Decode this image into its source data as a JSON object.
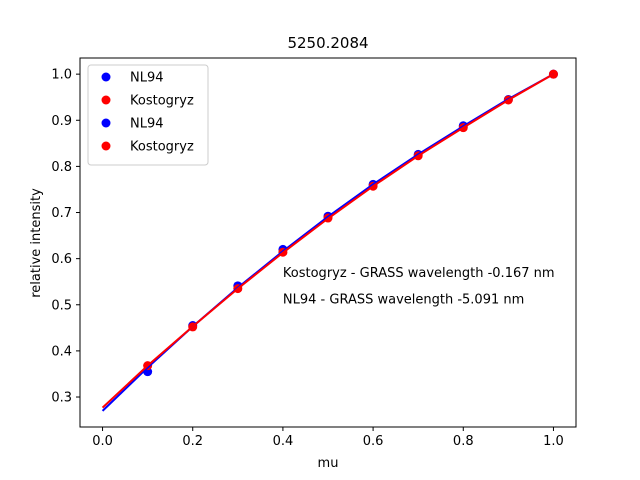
{
  "chart_data": {
    "type": "scatter",
    "title": "5250.2084",
    "xlabel": "mu",
    "ylabel": "relative intensity",
    "xlim": [
      -0.05,
      1.05
    ],
    "ylim": [
      0.235,
      1.035
    ],
    "xticks": [
      0.0,
      0.2,
      0.4,
      0.6,
      0.8,
      1.0
    ],
    "xtick_labels": [
      "0.0",
      "0.2",
      "0.4",
      "0.6",
      "0.8",
      "1.0"
    ],
    "yticks": [
      0.3,
      0.4,
      0.5,
      0.6,
      0.7,
      0.8,
      0.9,
      1.0
    ],
    "ytick_labels": [
      "0.3",
      "0.4",
      "0.5",
      "0.6",
      "0.7",
      "0.8",
      "0.9",
      "1.0"
    ],
    "grid": false,
    "legend_position": "upper-left",
    "legend": [
      {
        "label": "NL94",
        "color": "#0000ff"
      },
      {
        "label": "Kostogryz",
        "color": "#ff0000"
      },
      {
        "label": "NL94",
        "color": "#0000ff"
      },
      {
        "label": "Kostogryz",
        "color": "#ff0000"
      }
    ],
    "series": [
      {
        "name": "NL94",
        "color": "#0000ff",
        "kind": "points",
        "x": [
          0.1,
          0.2,
          0.3,
          0.4,
          0.5,
          0.6,
          0.7,
          0.8,
          0.9,
          1.0
        ],
        "y": [
          0.355,
          0.455,
          0.541,
          0.62,
          0.692,
          0.761,
          0.826,
          0.888,
          0.945,
          1.0
        ]
      },
      {
        "name": "Kostogryz",
        "color": "#ff0000",
        "kind": "points",
        "x": [
          0.1,
          0.2,
          0.3,
          0.4,
          0.5,
          0.6,
          0.7,
          0.8,
          0.9,
          1.0
        ],
        "y": [
          0.368,
          0.452,
          0.535,
          0.614,
          0.688,
          0.757,
          0.823,
          0.884,
          0.944,
          1.0
        ]
      },
      {
        "color": "#0000ff",
        "kind": "line",
        "x": [
          0.0,
          0.1,
          0.2,
          0.3,
          0.4,
          0.5,
          0.6,
          0.7,
          0.8,
          0.9,
          1.0
        ],
        "y": [
          0.27,
          0.364,
          0.453,
          0.537,
          0.616,
          0.691,
          0.761,
          0.826,
          0.887,
          0.946,
          1.0
        ]
      },
      {
        "color": "#ff0000",
        "kind": "line",
        "x": [
          0.0,
          0.1,
          0.2,
          0.3,
          0.4,
          0.5,
          0.6,
          0.7,
          0.8,
          0.9,
          1.0
        ],
        "y": [
          0.277,
          0.368,
          0.453,
          0.535,
          0.613,
          0.687,
          0.757,
          0.823,
          0.884,
          0.944,
          1.0
        ]
      }
    ],
    "annotations": [
      {
        "text": "Kostogryz - GRASS wavelength -0.167 nm",
        "x": 0.4,
        "y": 0.56
      },
      {
        "text": "NL94 - GRASS wavelength -5.091 nm",
        "x": 0.4,
        "y": 0.503
      }
    ]
  }
}
